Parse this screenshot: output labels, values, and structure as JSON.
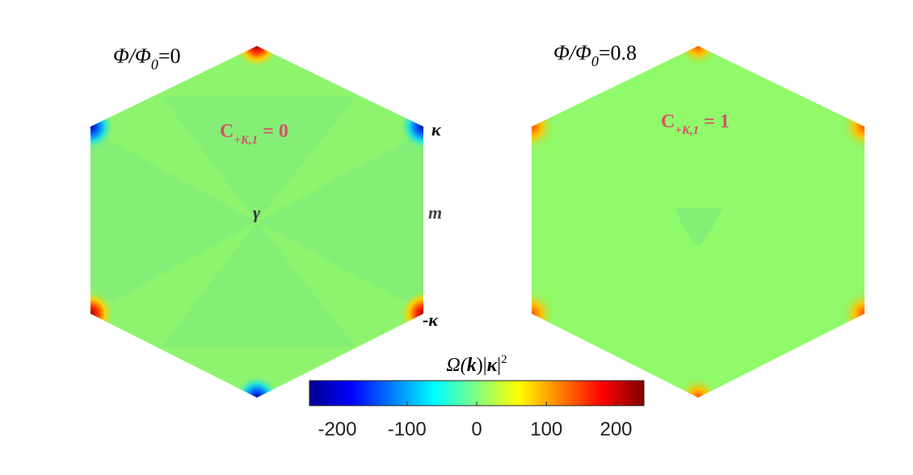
{
  "panels": [
    {
      "title": [
        "Φ/Φ",
        "0",
        "=0"
      ],
      "chern": [
        "C",
        "+K,1",
        " = 0"
      ],
      "points": [
        "κ",
        "m",
        "γ",
        "-κ"
      ]
    },
    {
      "title": [
        "Φ/Φ",
        "0",
        "=0.8"
      ],
      "chern": [
        "C",
        "+K,1",
        " = 1"
      ]
    }
  ],
  "colorbar": {
    "label": [
      "Ω(",
      "k",
      ")|",
      "κ",
      "|",
      "2"
    ],
    "lim": [
      -240,
      240
    ],
    "ticks": [
      -200,
      -100,
      0,
      100,
      200
    ]
  }
}
